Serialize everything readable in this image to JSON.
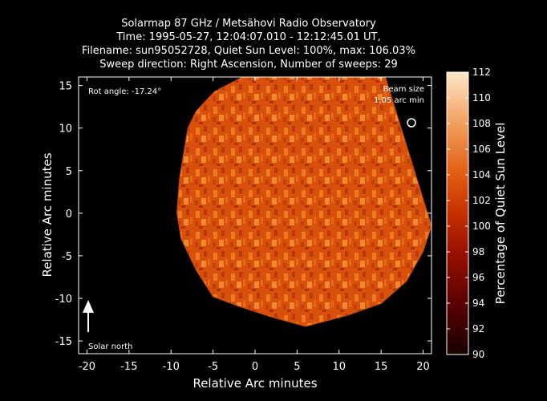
{
  "chart_data": {
    "type": "heatmap",
    "title_lines": [
      "Solarmap 87 GHz / Metsähovi Radio Observatory",
      "Time: 1995-05-27, 12:04:07.010 - 12:12:45.01 UT,",
      "Filename: sun95052728, Quiet Sun Level: 100%, max: 106.03%",
      "Sweep direction: Right Ascension, Number of sweeps: 29"
    ],
    "xlabel": "Relative Arc minutes",
    "ylabel": "Relative Arc minutes",
    "xlim": [
      -21,
      21
    ],
    "ylim": [
      -16.5,
      16
    ],
    "xticks": [
      -20,
      -15,
      -10,
      -5,
      0,
      5,
      10,
      15,
      20
    ],
    "yticks": [
      -15,
      -10,
      -5,
      0,
      5,
      10,
      15
    ],
    "colorbar": {
      "label": "Percentage of Quiet Sun Level",
      "min": 90,
      "max": 112,
      "ticks": [
        90,
        92,
        94,
        96,
        98,
        100,
        102,
        104,
        106,
        108,
        110,
        112
      ],
      "colors": [
        "#1a0000",
        "#5a0000",
        "#9a1000",
        "#c43000",
        "#e25d10",
        "#f2a060",
        "#fde6c8"
      ]
    },
    "annotations": {
      "rot_angle": "Rot angle: -17.24°",
      "beam_size_line1": "Beam size",
      "beam_size_line2": "1,05 arc min",
      "solar_north": "Solar north"
    },
    "disk": {
      "outline": [
        [
          -8.0,
          10.0
        ],
        [
          -7.0,
          12.0
        ],
        [
          -4.8,
          14.3
        ],
        [
          -1.5,
          16.0
        ],
        [
          12.0,
          16.0
        ],
        [
          15.5,
          16.0
        ],
        [
          21.0,
          -1.5
        ],
        [
          20.0,
          -4.5
        ],
        [
          18.0,
          -8.0
        ],
        [
          15.0,
          -10.6
        ],
        [
          11.0,
          -12.0
        ],
        [
          6.0,
          -13.3
        ],
        [
          2.0,
          -12.2
        ],
        [
          -2.0,
          -10.9
        ],
        [
          -5.0,
          -9.8
        ],
        [
          -7.0,
          -6.7
        ],
        [
          -8.8,
          -3.0
        ],
        [
          -9.3,
          0.0
        ],
        [
          -9.0,
          4.0
        ]
      ],
      "typical_level": 101
    }
  }
}
